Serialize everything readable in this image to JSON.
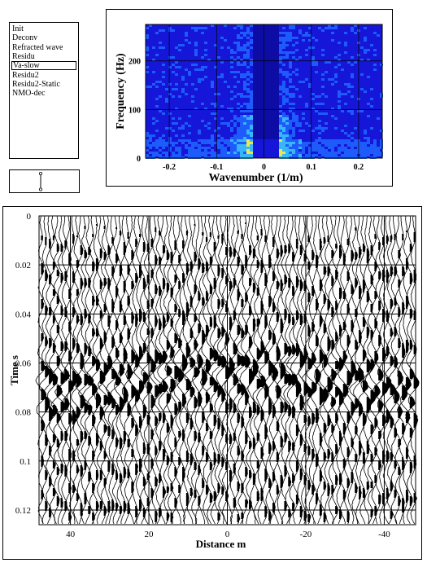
{
  "process_list": {
    "items": [
      "Init",
      "Deconv",
      "Refracted wave",
      "Residu",
      "Va-slow",
      "Residu2",
      "Residu2-Static",
      "NMO-dec"
    ],
    "selected_index": 4
  },
  "fk_spectrum": {
    "ylabel": "Frequency (Hz)",
    "xlabel": "Wavenumber (1/m)",
    "x_ticks": [
      "-0.2",
      "-0.1",
      "0",
      "0.1",
      "0.2"
    ],
    "y_ticks": [
      "200",
      "100",
      "0"
    ],
    "colors": {
      "background": "#1616d8",
      "mid": "#1e64ff",
      "high": "#3cc8ff",
      "peak": "#ffff40"
    }
  },
  "chart_data": {
    "type": "heatmap",
    "subtype": "seismic-wiggle-section",
    "xlabel": "Distance m",
    "ylabel": "Time s",
    "x_ticks": [
      "40",
      "20",
      "0",
      "-20",
      "-40"
    ],
    "y_ticks": [
      "0",
      "0.02",
      "0.04",
      "0.06",
      "0.08",
      "0.1",
      "0.12"
    ],
    "xlim": [
      48,
      -48
    ],
    "ylim": [
      0,
      0.126
    ],
    "grid": true,
    "trace_count": 96
  }
}
